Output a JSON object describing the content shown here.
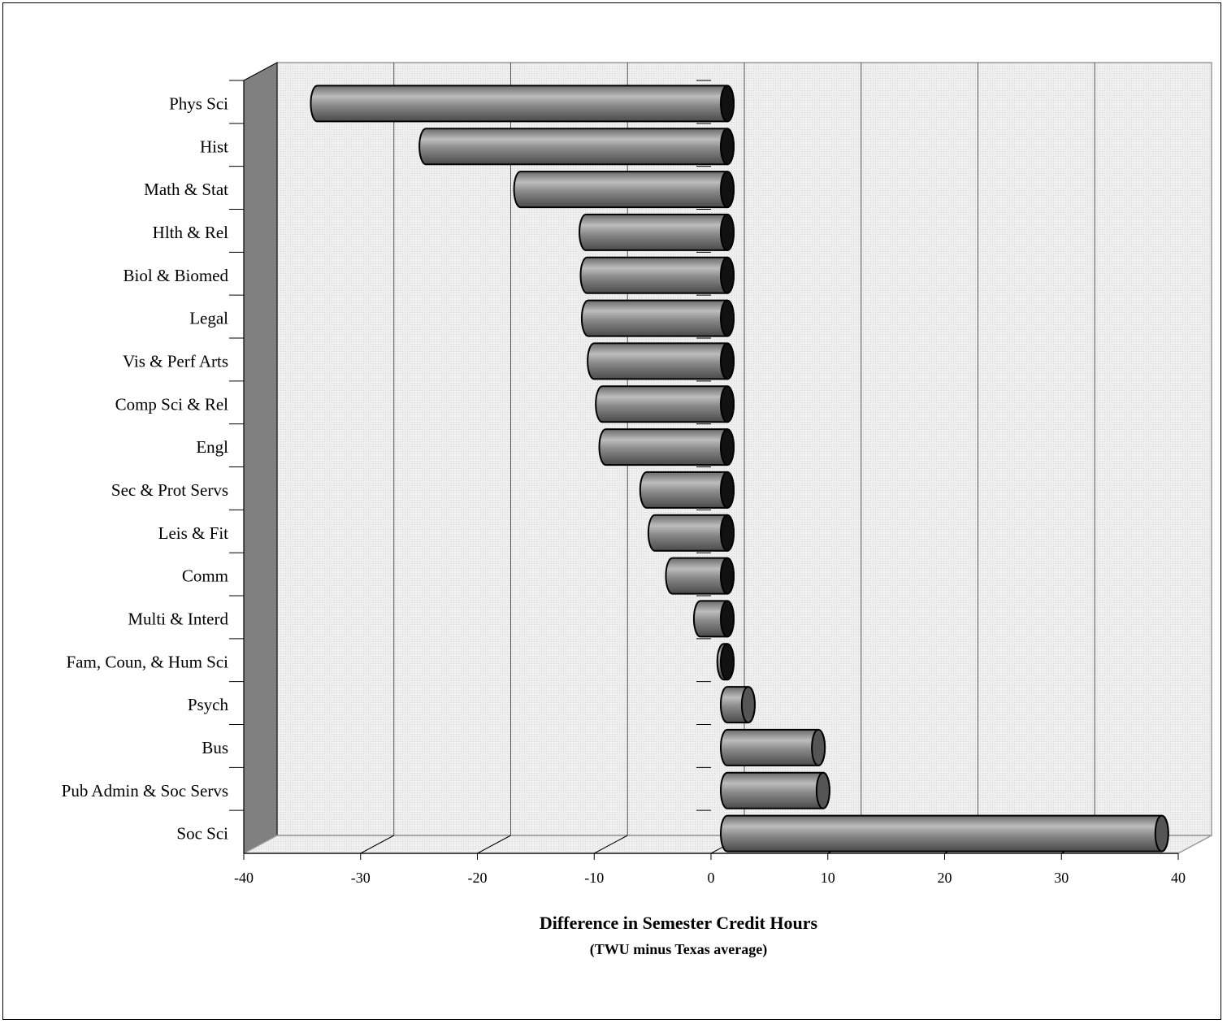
{
  "chart_data": {
    "type": "bar",
    "orientation": "horizontal",
    "style": "3d-cylinder",
    "categories": [
      "Phys Sci",
      "Hist",
      "Math & Stat",
      "Hlth & Rel",
      "Biol & Biomed",
      "Legal",
      "Vis & Perf Arts",
      "Comp Sci & Rel",
      "Engl",
      "Sec  & Prot Servs",
      "Leis & Fit",
      "Comm",
      "Multi & Interd",
      "Fam, Coun, & Hum Sci",
      "Psych",
      "Bus",
      "Pub Admin & Soc Servs",
      "Soc Sci"
    ],
    "values": [
      -35.1,
      -25.8,
      -17.7,
      -12.1,
      -12.0,
      -11.9,
      -11.4,
      -10.7,
      -10.4,
      -6.9,
      -6.2,
      -4.7,
      -2.3,
      -0.3,
      1.8,
      7.8,
      8.2,
      37.2
    ],
    "xlabel": "Difference in Semester Credit Hours",
    "xlabel_sub": "(TWU minus Texas average)",
    "xlim": [
      -40,
      40
    ],
    "xticks": [
      -40,
      -30,
      -20,
      -10,
      0,
      10,
      20,
      30,
      40
    ],
    "grid": true,
    "legend": "none",
    "colors": {
      "bar": "#8a8a8a",
      "bar_highlight": "#b4b4b4",
      "bar_shadow": "#555555",
      "wall": "#eeeeee",
      "side_wall": "#808080"
    }
  }
}
